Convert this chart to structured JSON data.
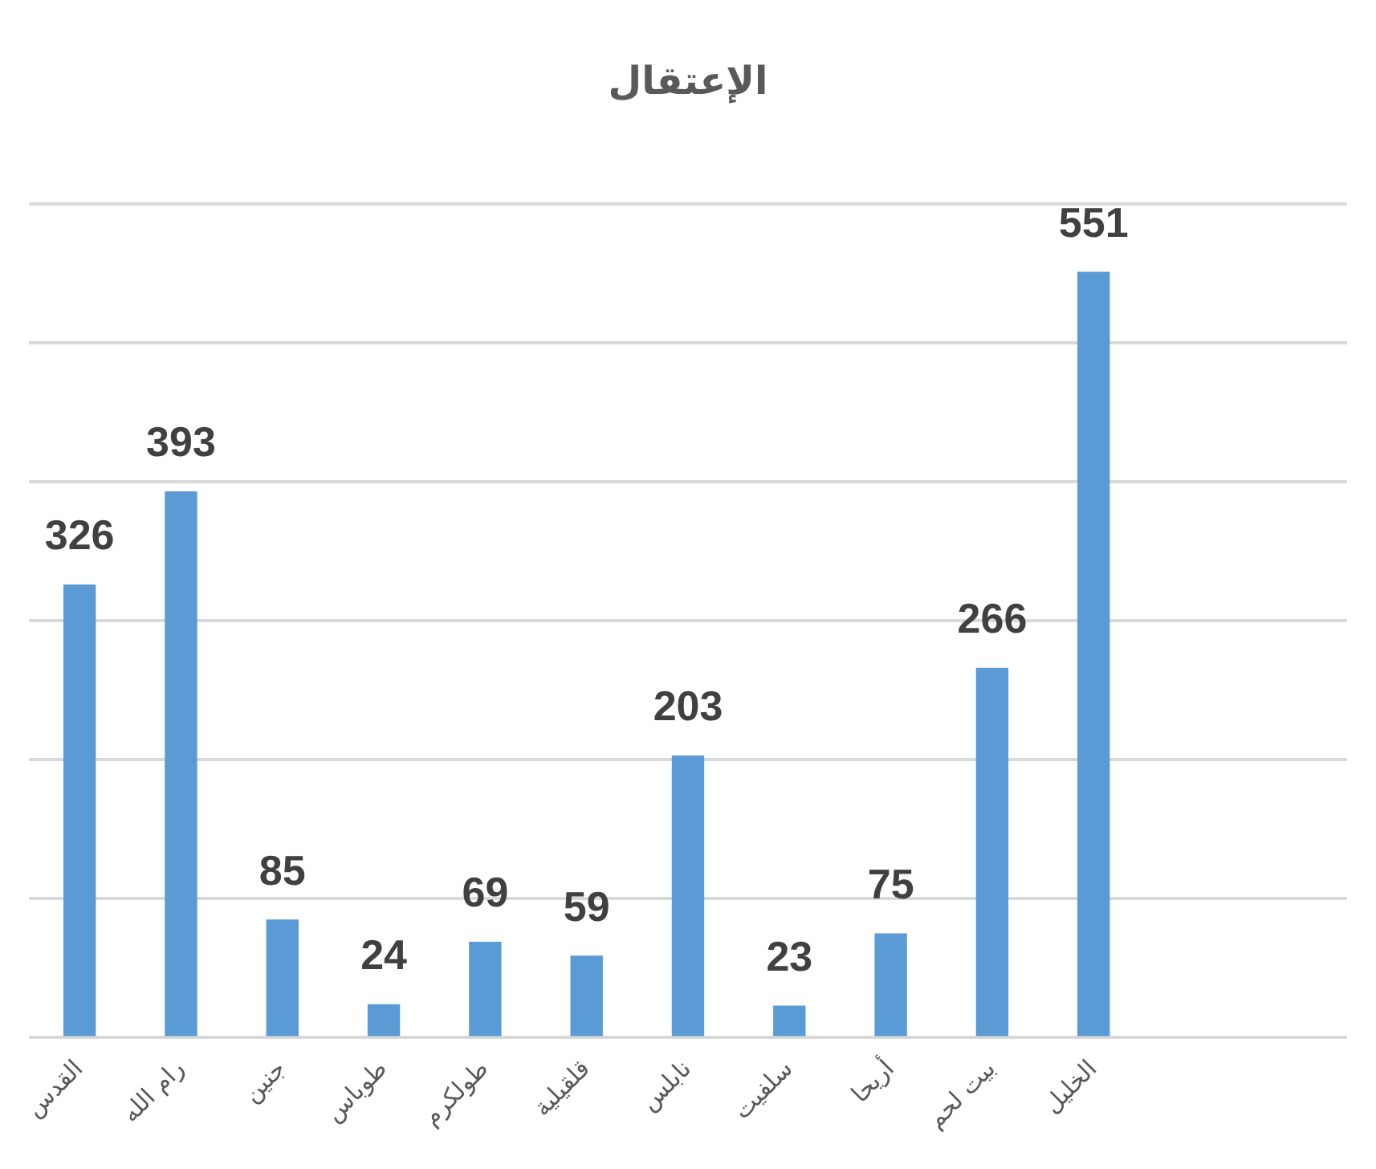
{
  "chart_data": {
    "type": "bar",
    "title": "الإعتقال",
    "categories": [
      "القدس",
      "رام الله",
      "جنين",
      "طوباس",
      "طولكرم",
      "قلقيلية",
      "نابلس",
      "سلفيت",
      "أريحا",
      "بيت لحم",
      "الخليل",
      null,
      null
    ],
    "values": [
      326,
      393,
      85,
      24,
      69,
      59,
      203,
      23,
      75,
      266,
      551,
      null,
      null
    ],
    "color": "#5b9bd5",
    "data_labels": true,
    "grid": "y",
    "tick_labels": "x",
    "ylim": [
      0,
      600
    ],
    "yticks": [
      {
        "value": 0,
        "label": null
      },
      {
        "value": 100,
        "label": null
      },
      {
        "value": 200,
        "label": null
      },
      {
        "value": 300,
        "label": null
      },
      {
        "value": 400,
        "label": null
      },
      {
        "value": 500,
        "label": null
      },
      {
        "value": 600,
        "label": null
      }
    ]
  }
}
